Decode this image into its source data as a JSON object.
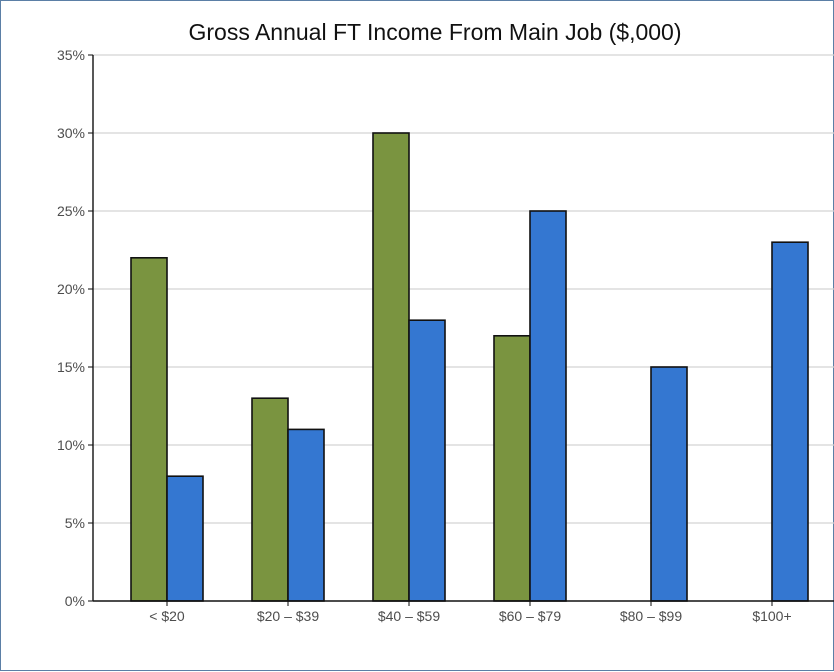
{
  "chart_data": {
    "type": "bar",
    "title": "Gross Annual FT Income From Main Job ($,000)",
    "xlabel": "",
    "ylabel": "",
    "categories": [
      "< $20",
      "$20 – $39",
      "$40 – $59",
      "$60 – $79",
      "$80 – $99",
      "$100+"
    ],
    "series": [
      {
        "values": [
          22,
          13,
          30,
          17,
          0,
          0
        ],
        "color": "#7a9440"
      },
      {
        "values": [
          8,
          11,
          18,
          25,
          15,
          23
        ],
        "color": "#3477d1"
      }
    ],
    "ylim": [
      0,
      35
    ],
    "yticks": [
      0,
      5,
      10,
      15,
      20,
      25,
      30,
      35
    ],
    "ytick_labels": [
      "0%",
      "5%",
      "10%",
      "15%",
      "20%",
      "25%",
      "30%",
      "35%"
    ],
    "grid": true,
    "legend": "none"
  }
}
